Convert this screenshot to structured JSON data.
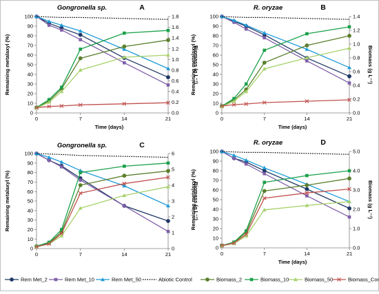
{
  "colors": {
    "rem_met_2": "#1f3864",
    "rem_met_10": "#7f5fa8",
    "rem_met_50": "#1f9bd7",
    "abiotic": "#000000",
    "biomass_2": "#5a7f2c",
    "biomass_10": "#1aa14a",
    "biomass_50": "#a7d16b",
    "biomass_control": "#c0504d"
  },
  "legend": [
    {
      "key": "rem_met_2",
      "label": "Rem Met_2",
      "marker": "circle",
      "dash": false
    },
    {
      "key": "rem_met_10",
      "label": "Rem Met_10",
      "marker": "square",
      "dash": false
    },
    {
      "key": "rem_met_50",
      "label": "Rem Met_50",
      "marker": "triangle",
      "dash": false
    },
    {
      "key": "abiotic",
      "label": "Abiotic Control",
      "marker": "none",
      "dash": true
    },
    {
      "key": "biomass_2",
      "label": "Biomass_2",
      "marker": "circle",
      "dash": false
    },
    {
      "key": "biomass_10",
      "label": "Biomass_10",
      "marker": "square",
      "dash": false
    },
    {
      "key": "biomass_50",
      "label": "Biomass_50",
      "marker": "triangle",
      "dash": false
    },
    {
      "key": "biomass_control",
      "label": "Biomass_Control",
      "marker": "x",
      "dash": false
    }
  ],
  "chart_data": [
    {
      "type": "line",
      "panel": "A",
      "title": "Gongronella sp.",
      "xlabel": "Time (days)",
      "ylabel": "Remaining metalaxyl (%)",
      "y2label": "Biomass (g L⁻¹)",
      "x": [
        0,
        2,
        4,
        7,
        14,
        21
      ],
      "xlim": [
        0,
        21
      ],
      "ylim": [
        0,
        100
      ],
      "y2lim": [
        0,
        1.8
      ],
      "xticks": [
        0,
        7,
        14,
        21
      ],
      "yticks": [
        0,
        10,
        20,
        30,
        40,
        50,
        60,
        70,
        80,
        90,
        100
      ],
      "y2ticks": [
        "0.0",
        "0.2",
        "0.4",
        "0.6",
        "0.8",
        "1.0",
        "1.2",
        "1.4",
        "1.6",
        "1.8"
      ],
      "series": [
        {
          "key": "rem_met_2",
          "name": "Rem Met_2",
          "axis": "left",
          "values": [
            100,
            93,
            88,
            81,
            57,
            37
          ]
        },
        {
          "key": "rem_met_10",
          "name": "Rem Met_10",
          "axis": "left",
          "values": [
            100,
            91,
            86,
            76,
            52,
            29
          ]
        },
        {
          "key": "rem_met_50",
          "name": "Rem Met_50",
          "axis": "left",
          "values": [
            100,
            95,
            91,
            85,
            66,
            46
          ]
        },
        {
          "key": "abiotic",
          "name": "Abiotic Control",
          "axis": "left",
          "values": [
            100,
            99.5,
            99,
            99,
            98,
            97
          ]
        },
        {
          "key": "biomass_2",
          "name": "Biomass_2",
          "axis": "right",
          "values": [
            0.1,
            0.22,
            0.45,
            1.02,
            1.24,
            1.36
          ]
        },
        {
          "key": "biomass_10",
          "name": "Biomass_10",
          "axis": "right",
          "values": [
            0.1,
            0.25,
            0.48,
            1.19,
            1.49,
            1.54
          ]
        },
        {
          "key": "biomass_50",
          "name": "Biomass_50",
          "axis": "right",
          "values": [
            0.09,
            0.2,
            0.4,
            0.8,
            1.04,
            1.08
          ]
        },
        {
          "key": "biomass_control",
          "name": "Biomass_Control",
          "axis": "right",
          "values": [
            0.1,
            0.12,
            0.13,
            0.15,
            0.17,
            0.19
          ]
        }
      ]
    },
    {
      "type": "line",
      "panel": "B",
      "title": "R. oryzae",
      "xlabel": "Time (days)",
      "ylabel": "Remaining metalaxyl (%)",
      "y2label": "Biomass (g L⁻¹)",
      "x": [
        0,
        2,
        4,
        7,
        14,
        21
      ],
      "xlim": [
        0,
        21
      ],
      "ylim": [
        0,
        100
      ],
      "y2lim": [
        0,
        1.4
      ],
      "xticks": [
        0,
        7,
        14,
        21
      ],
      "yticks": [
        0,
        10,
        20,
        30,
        40,
        50,
        60,
        70,
        80,
        90,
        100
      ],
      "y2ticks": [
        "0.0",
        "0.2",
        "0.4",
        "0.6",
        "0.8",
        "1.0",
        "1.2",
        "1.4"
      ],
      "series": [
        {
          "key": "rem_met_2",
          "name": "Rem Met_2",
          "axis": "left",
          "values": [
            100,
            95,
            90,
            81,
            57,
            38
          ]
        },
        {
          "key": "rem_met_10",
          "name": "Rem Met_10",
          "axis": "left",
          "values": [
            100,
            94,
            87,
            78,
            54,
            31
          ]
        },
        {
          "key": "rem_met_50",
          "name": "Rem Met_50",
          "axis": "left",
          "values": [
            100,
            96,
            91,
            83,
            66,
            47
          ]
        },
        {
          "key": "abiotic",
          "name": "Abiotic Control",
          "axis": "left",
          "values": [
            100,
            99.5,
            99,
            99,
            98,
            97
          ]
        },
        {
          "key": "biomass_2",
          "name": "Biomass_2",
          "axis": "right",
          "values": [
            0.1,
            0.19,
            0.34,
            0.73,
            0.98,
            1.12
          ]
        },
        {
          "key": "biomass_10",
          "name": "Biomass_10",
          "axis": "right",
          "values": [
            0.1,
            0.21,
            0.42,
            0.91,
            1.15,
            1.25
          ]
        },
        {
          "key": "biomass_50",
          "name": "Biomass_50",
          "axis": "right",
          "values": [
            0.09,
            0.17,
            0.31,
            0.64,
            0.8,
            0.94
          ]
        },
        {
          "key": "biomass_control",
          "name": "Biomass_Control",
          "axis": "right",
          "values": [
            0.1,
            0.12,
            0.13,
            0.15,
            0.17,
            0.19
          ]
        }
      ]
    },
    {
      "type": "line",
      "panel": "C",
      "title": "Gongronella sp.",
      "xlabel": "",
      "ylabel": "Remaining metalaxyl (%)",
      "y2label": "Biomass (g L⁻¹)",
      "x": [
        0,
        2,
        4,
        7,
        14,
        21
      ],
      "xlim": [
        0,
        21
      ],
      "ylim": [
        0,
        100
      ],
      "y2lim": [
        0,
        6
      ],
      "xticks": [
        0,
        7,
        14,
        21
      ],
      "yticks": [
        0,
        10,
        20,
        30,
        40,
        50,
        60,
        70,
        80,
        90,
        100
      ],
      "y2ticks": [
        "0",
        "1",
        "2",
        "3",
        "4",
        "5",
        "6"
      ],
      "series": [
        {
          "key": "rem_met_2",
          "name": "Rem Met_2",
          "axis": "left",
          "values": [
            100,
            93,
            87,
            74,
            45,
            29
          ]
        },
        {
          "key": "rem_met_10",
          "name": "Rem Met_10",
          "axis": "left",
          "values": [
            100,
            93,
            86,
            72,
            45,
            18
          ]
        },
        {
          "key": "rem_met_50",
          "name": "Rem Met_50",
          "axis": "left",
          "values": [
            100,
            96,
            91,
            82,
            66,
            45
          ]
        },
        {
          "key": "abiotic",
          "name": "Abiotic Control",
          "axis": "left",
          "values": [
            100,
            99.5,
            99,
            98,
            97,
            96
          ]
        },
        {
          "key": "biomass_2",
          "name": "Biomass_2",
          "axis": "right",
          "values": [
            0.13,
            0.35,
            1.05,
            4.0,
            4.6,
            4.9
          ]
        },
        {
          "key": "biomass_10",
          "name": "Biomass_10",
          "axis": "right",
          "values": [
            0.15,
            0.4,
            1.2,
            4.8,
            5.2,
            5.4
          ]
        },
        {
          "key": "biomass_50",
          "name": "Biomass_50",
          "axis": "right",
          "values": [
            0.1,
            0.3,
            0.8,
            2.55,
            3.35,
            3.9
          ]
        },
        {
          "key": "biomass_control",
          "name": "Biomass_Control",
          "axis": "right",
          "values": [
            0.12,
            0.3,
            0.95,
            3.5,
            4.1,
            4.5
          ]
        }
      ]
    },
    {
      "type": "line",
      "panel": "D",
      "title": "R. oryzae",
      "xlabel": "Time (days)",
      "ylabel": "Remaining metalaxyl (%)",
      "y2label": "Biomass (g L⁻¹)",
      "x": [
        0,
        2,
        4,
        7,
        14,
        21
      ],
      "xlim": [
        0,
        21
      ],
      "ylim": [
        0,
        100
      ],
      "y2lim": [
        0,
        5
      ],
      "xticks": [
        0,
        7,
        14,
        21
      ],
      "yticks": [
        0,
        10,
        20,
        30,
        40,
        50,
        60,
        70,
        80,
        90,
        100
      ],
      "y2ticks": [
        "0.0",
        "1.0",
        "2.0",
        "3.0",
        "4.0",
        "5.0"
      ],
      "series": [
        {
          "key": "rem_met_2",
          "name": "Rem Met_2",
          "axis": "left",
          "values": [
            100,
            93,
            89,
            80,
            61,
            41
          ]
        },
        {
          "key": "rem_met_10",
          "name": "Rem Met_10",
          "axis": "left",
          "values": [
            100,
            93,
            87,
            77,
            54,
            32
          ]
        },
        {
          "key": "rem_met_50",
          "name": "Rem Met_50",
          "axis": "left",
          "values": [
            100,
            96,
            91,
            83,
            66,
            48
          ]
        },
        {
          "key": "abiotic",
          "name": "Abiotic Control",
          "axis": "left",
          "values": [
            100,
            99.5,
            99,
            99,
            98,
            97
          ]
        },
        {
          "key": "biomass_2",
          "name": "Biomass_2",
          "axis": "right",
          "values": [
            0.12,
            0.28,
            0.8,
            2.95,
            3.25,
            3.6
          ]
        },
        {
          "key": "biomass_10",
          "name": "Biomass_10",
          "axis": "right",
          "values": [
            0.12,
            0.3,
            0.88,
            3.4,
            3.75,
            4.0
          ]
        },
        {
          "key": "biomass_50",
          "name": "Biomass_50",
          "axis": "right",
          "values": [
            0.1,
            0.22,
            0.62,
            1.97,
            2.2,
            2.4
          ]
        },
        {
          "key": "biomass_control",
          "name": "Biomass_Control",
          "axis": "right",
          "values": [
            0.12,
            0.25,
            0.7,
            2.58,
            2.85,
            3.05
          ]
        }
      ]
    }
  ]
}
